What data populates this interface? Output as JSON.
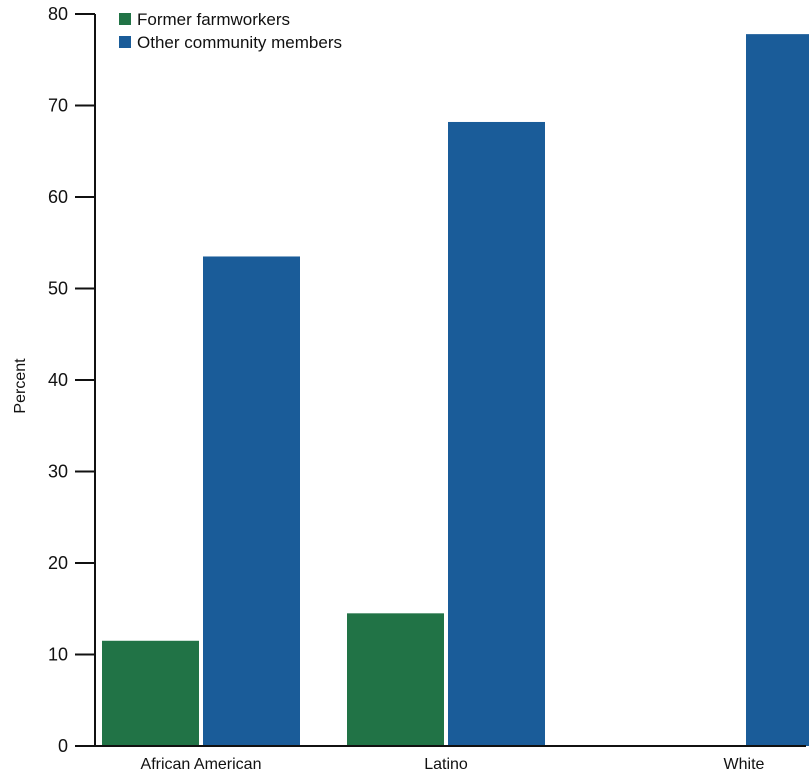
{
  "chart_data": {
    "type": "bar",
    "title": "",
    "xlabel": "",
    "ylabel": "Percent",
    "ylim": [
      0,
      80
    ],
    "yticks": [
      0,
      10,
      20,
      30,
      40,
      50,
      60,
      70,
      80
    ],
    "grid": false,
    "legend_position": "top-left",
    "categories": [
      "African American",
      "Latino",
      "White"
    ],
    "series": [
      {
        "name": "Former farmworkers",
        "color": "#217346",
        "values": [
          11.5,
          14.5,
          null
        ]
      },
      {
        "name": "Other community members",
        "color": "#1a5c99",
        "values": [
          53.5,
          68.2,
          77.8
        ]
      }
    ]
  }
}
